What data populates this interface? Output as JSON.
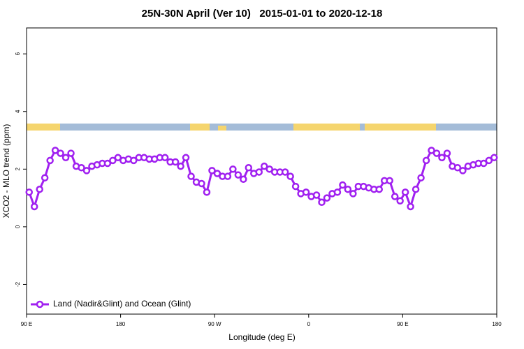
{
  "chart_data": {
    "type": "line",
    "title": "25N-30N April (Ver 10)   2015-01-01 to 2020-12-18",
    "x_label": "Longitude (deg E)",
    "y_label": "XCO2 - MLO trend (ppm)",
    "x": [
      92.5,
      97.5,
      102.5,
      107.5,
      112.5,
      117.5,
      122.5,
      127.5,
      132.5,
      137.5,
      142.5,
      147.5,
      152.5,
      157.5,
      162.5,
      167.5,
      172.5,
      177.5,
      182.5,
      187.5,
      192.5,
      197.5,
      202.5,
      207.5,
      212.5,
      217.5,
      222.5,
      227.5,
      232.5,
      237.5,
      242.5,
      247.5,
      252.5,
      257.5,
      262.5,
      267.5,
      272.5,
      277.5,
      282.5,
      287.5,
      292.5,
      297.5,
      302.5,
      307.5,
      312.5,
      317.5,
      322.5,
      327.5,
      332.5,
      337.5,
      342.5,
      347.5,
      352.5,
      357.5,
      362.5,
      367.5,
      372.5,
      377.5,
      382.5,
      387.5,
      392.5,
      397.5,
      402.5,
      407.5,
      412.5,
      417.5,
      422.5,
      427.5,
      432.5,
      437.5,
      442.5,
      447.5,
      452.5,
      457.5,
      462.5,
      467.5,
      472.5,
      477.5,
      482.5,
      487.5,
      492.5,
      497.5,
      502.5,
      507.5,
      512.5,
      517.5,
      522.5,
      527.5,
      532.5,
      537.5
    ],
    "series": [
      {
        "name": "Land (Nadir&Glint) and Ocean (Glint)",
        "color": "#a020f0",
        "values": [
          1.2,
          0.7,
          1.3,
          1.7,
          2.3,
          2.65,
          2.55,
          2.4,
          2.55,
          2.1,
          2.05,
          1.95,
          2.1,
          2.15,
          2.2,
          2.2,
          2.3,
          2.4,
          2.3,
          2.35,
          2.3,
          2.4,
          2.4,
          2.35,
          2.35,
          2.4,
          2.4,
          2.25,
          2.25,
          2.1,
          2.4,
          1.75,
          1.55,
          1.5,
          1.2,
          1.95,
          1.85,
          1.75,
          1.75,
          2.0,
          1.8,
          1.65,
          2.05,
          1.85,
          1.9,
          2.1,
          2.0,
          1.9,
          1.9,
          1.9,
          1.75,
          1.4,
          1.15,
          1.2,
          1.05,
          1.1,
          0.85,
          1.0,
          1.15,
          1.2,
          1.45,
          1.3,
          1.15,
          1.4,
          1.4,
          1.35,
          1.3,
          1.3,
          1.6,
          1.6,
          1.05,
          0.9,
          1.2,
          0.7,
          1.3,
          1.7,
          2.3,
          2.65,
          2.55,
          2.4,
          2.55,
          2.1,
          2.05,
          1.95,
          2.1,
          2.15,
          2.2,
          2.2,
          2.3,
          2.4
        ]
      }
    ],
    "xlim": [
      90,
      540
    ],
    "xticks": [
      {
        "value": 90,
        "label": "90 E"
      },
      180,
      {
        "value": 270,
        "label": "90 W"
      },
      {
        "value": 360,
        "label": "0"
      },
      {
        "value": 450,
        "label": "90 E"
      },
      {
        "value": 540,
        "label": "180"
      }
    ],
    "ylim": [
      -3.03,
      6.9
    ],
    "yticks": [
      -2,
      0,
      2,
      4,
      6
    ],
    "legend": "bottomleft"
  }
}
